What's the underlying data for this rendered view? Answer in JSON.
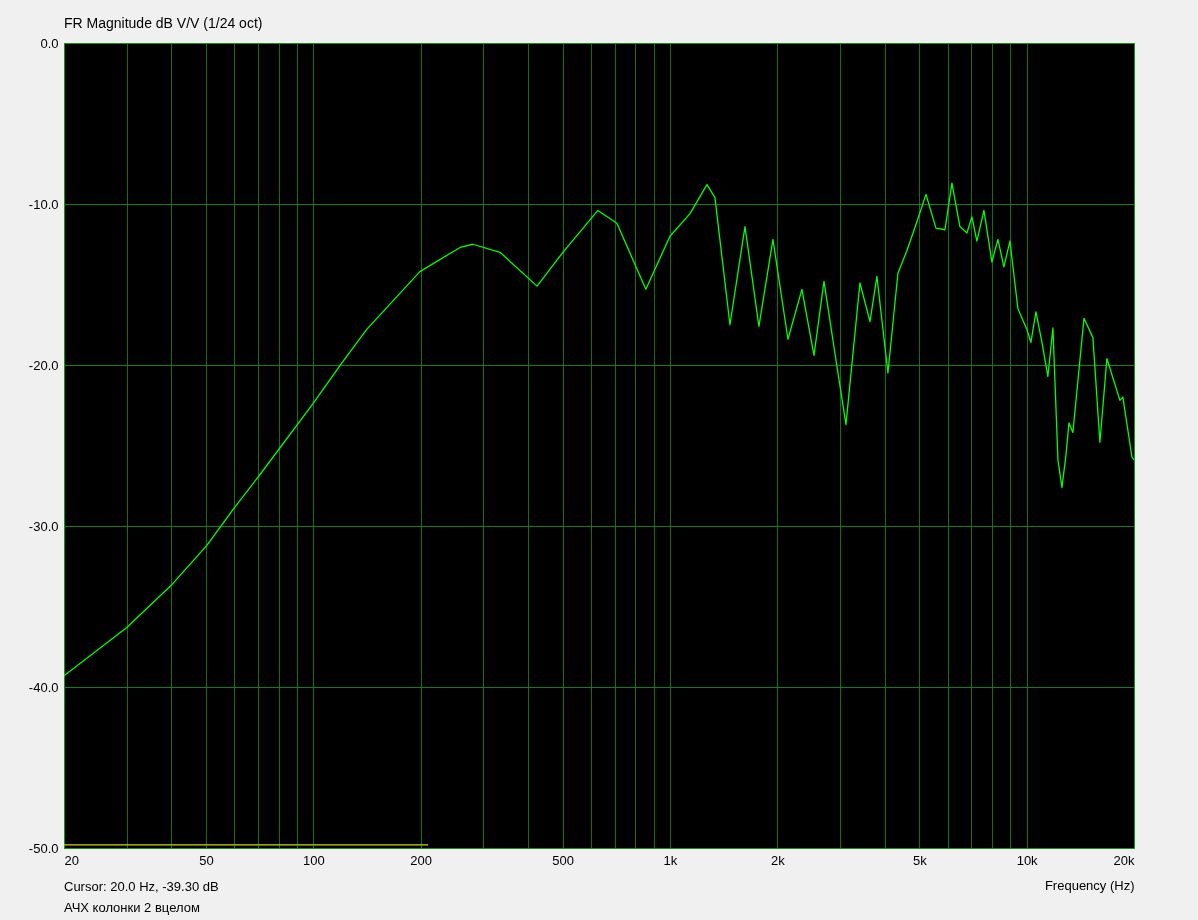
{
  "chart_data": {
    "type": "line",
    "title": "FR Magnitude dB V/V (1/24 oct)",
    "xlabel": "Frequency (Hz)",
    "log": "x",
    "grid": true,
    "xlim": [
      20,
      20000
    ],
    "ylim": [
      -50,
      0
    ],
    "xticks": [
      20,
      {
        "value": 30,
        "label": null
      },
      {
        "value": 40,
        "label": null
      },
      50,
      {
        "value": 60,
        "label": null
      },
      {
        "value": 70,
        "label": null
      },
      {
        "value": 80,
        "label": null
      },
      {
        "value": 90,
        "label": null
      },
      100,
      200,
      {
        "value": 300,
        "label": null
      },
      {
        "value": 400,
        "label": null
      },
      500,
      {
        "value": 600,
        "label": null
      },
      {
        "value": 700,
        "label": null
      },
      {
        "value": 800,
        "label": null
      },
      {
        "value": 900,
        "label": null
      },
      {
        "value": 1000,
        "label": "1k"
      },
      {
        "value": 2000,
        "label": "2k"
      },
      {
        "value": 3000,
        "label": null
      },
      {
        "value": 4000,
        "label": null
      },
      {
        "value": 5000,
        "label": "5k"
      },
      {
        "value": 6000,
        "label": null
      },
      {
        "value": 7000,
        "label": null
      },
      {
        "value": 8000,
        "label": null
      },
      {
        "value": 9000,
        "label": null
      },
      {
        "value": 10000,
        "label": "10k"
      },
      {
        "value": 20000,
        "label": "20k"
      }
    ],
    "yticks": [
      {
        "value": -50,
        "label": "-50.0"
      },
      {
        "value": -40,
        "label": "-40.0"
      },
      {
        "value": -30,
        "label": "-30.0"
      },
      {
        "value": -20,
        "label": "-20.0"
      },
      {
        "value": -10,
        "label": "-10.0"
      },
      {
        "value": 0,
        "label": "0.0"
      }
    ],
    "annotations": [
      "Cursor: 20.0 Hz, -39.30 dB",
      "АЧХ колонки 2 вцелом"
    ],
    "series": [
      {
        "color": "#00ff00",
        "x": [
          20,
          30,
          39.9,
          50.3,
          59.9,
          70.9,
          99.8,
          120,
          141,
          199,
          258,
          280,
          334,
          424,
          501,
          628,
          710,
          856,
          1000,
          1138,
          1270,
          1337,
          1473,
          1623,
          1776,
          1944,
          2142,
          2344,
          2534,
          2703,
          2902,
          3115,
          3409,
          3637,
          3804,
          4084,
          4357,
          4616,
          4925,
          5221,
          5570,
          5902,
          6174,
          6500,
          6802,
          7024,
          7253,
          7590,
          7991,
          8308,
          8636,
          8978,
          9452,
          10020,
          10280,
          10620,
          11040,
          11470,
          11850,
          12240,
          12560,
          12890,
          13140,
          13480,
          14480,
          15340,
          16050,
          16790,
          18260,
          18610,
          19730,
          20000
        ],
        "values": [
          -39.3,
          -36.3,
          -33.7,
          -31.2,
          -28.9,
          -26.8,
          -22.4,
          -19.9,
          -17.8,
          -14.2,
          -12.7,
          -12.5,
          -13.0,
          -15.1,
          -13.0,
          -10.4,
          -11.2,
          -15.3,
          -12.0,
          -10.6,
          -8.8,
          -9.6,
          -17.5,
          -11.4,
          -17.6,
          -12.2,
          -18.4,
          -15.3,
          -19.4,
          -14.8,
          -19.3,
          -23.7,
          -14.9,
          -17.3,
          -14.5,
          -20.5,
          -14.3,
          -12.9,
          -11.1,
          -9.4,
          -11.5,
          -11.6,
          -8.7,
          -11.4,
          -11.8,
          -10.8,
          -12.3,
          -10.4,
          -13.6,
          -12.2,
          -13.9,
          -12.3,
          -16.5,
          -17.8,
          -18.6,
          -16.7,
          -18.6,
          -20.7,
          -17.7,
          -25.9,
          -27.6,
          -25.6,
          -23.6,
          -24.2,
          -17.1,
          -18.3,
          -24.8,
          -19.6,
          -22.2,
          -22.0,
          -25.7,
          -25.9
        ]
      },
      {
        "color": "#d4d400",
        "x": [
          20,
          210
        ],
        "values": [
          -49.8,
          -49.8
        ]
      }
    ]
  }
}
